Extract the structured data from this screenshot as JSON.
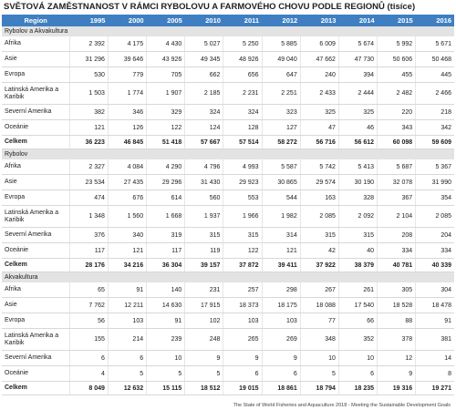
{
  "title": "SVĚTOVÁ ZAMĚSTNANOST V RÁMCI RYBOLOVU A FARMOVÉHO CHOVU PODLE REGIONŮ (tisíce)",
  "header": [
    "Region",
    "1995",
    "2000",
    "2005",
    "2010",
    "2011",
    "2012",
    "2013",
    "2014",
    "2015",
    "2016"
  ],
  "sections": [
    {
      "name": "Rybolov a Akvakultura",
      "rows": [
        {
          "label": "Afrika",
          "values": [
            "2 392",
            "4 175",
            "4 430",
            "5 027",
            "5 250",
            "5 885",
            "6 009",
            "5 674",
            "5 992",
            "5 671"
          ]
        },
        {
          "label": "Asie",
          "values": [
            "31 296",
            "39 646",
            "43 926",
            "49 345",
            "48 926",
            "49 040",
            "47 662",
            "47 730",
            "50 606",
            "50 468"
          ]
        },
        {
          "label": "Evropa",
          "values": [
            "530",
            "779",
            "705",
            "662",
            "656",
            "647",
            "240",
            "394",
            "455",
            "445"
          ]
        },
        {
          "label": "Latinská Amerika a Karibik",
          "values": [
            "1 503",
            "1 774",
            "1 907",
            "2 185",
            "2 231",
            "2 251",
            "2 433",
            "2 444",
            "2 482",
            "2 466"
          ]
        },
        {
          "label": "Severní Amerika",
          "values": [
            "382",
            "346",
            "329",
            "324",
            "324",
            "323",
            "325",
            "325",
            "220",
            "218"
          ]
        },
        {
          "label": "Oceánie",
          "values": [
            "121",
            "126",
            "122",
            "124",
            "128",
            "127",
            "47",
            "46",
            "343",
            "342"
          ]
        },
        {
          "label": "Celkem",
          "values": [
            "36 223",
            "46 845",
            "51 418",
            "57 667",
            "57 514",
            "58 272",
            "56 716",
            "56 612",
            "60 098",
            "59 609"
          ]
        }
      ]
    },
    {
      "name": "Rybolov",
      "rows": [
        {
          "label": "Afrika",
          "values": [
            "2 327",
            "4 084",
            "4 290",
            "4 796",
            "4 993",
            "5 587",
            "5 742",
            "5 413",
            "5 687",
            "5 367"
          ]
        },
        {
          "label": "Asie",
          "values": [
            "23 534",
            "27 435",
            "29 296",
            "31 430",
            "29 923",
            "30 865",
            "29 574",
            "30 190",
            "32 078",
            "31 990"
          ]
        },
        {
          "label": "Evropa",
          "values": [
            "474",
            "676",
            "614",
            "560",
            "553",
            "544",
            "163",
            "328",
            "367",
            "354"
          ]
        },
        {
          "label": "Latinská Amerika a Karibik",
          "values": [
            "1 348",
            "1 560",
            "1 668",
            "1 937",
            "1 966",
            "1 982",
            "2 085",
            "2 092",
            "2 104",
            "2 085"
          ]
        },
        {
          "label": "Severní Amerika",
          "values": [
            "376",
            "340",
            "319",
            "315",
            "315",
            "314",
            "315",
            "315",
            "208",
            "204"
          ]
        },
        {
          "label": "Oceánie",
          "values": [
            "117",
            "121",
            "117",
            "119",
            "122",
            "121",
            "42",
            "40",
            "334",
            "334"
          ]
        },
        {
          "label": "Celkem",
          "values": [
            "28 176",
            "34 216",
            "36 304",
            "39 157",
            "37 872",
            "39 411",
            "37 922",
            "38 379",
            "40 781",
            "40 339"
          ]
        }
      ]
    },
    {
      "name": "Akvakultura",
      "rows": [
        {
          "label": "Afrika",
          "values": [
            "65",
            "91",
            "140",
            "231",
            "257",
            "298",
            "267",
            "261",
            "305",
            "304"
          ]
        },
        {
          "label": "Asie",
          "values": [
            "7 762",
            "12 211",
            "14 630",
            "17 915",
            "18 373",
            "18 175",
            "18 088",
            "17 540",
            "18 528",
            "18 478"
          ]
        },
        {
          "label": "Evropa",
          "values": [
            "56",
            "103",
            "91",
            "102",
            "103",
            "103",
            "77",
            "66",
            "88",
            "91"
          ]
        },
        {
          "label": "Latinská Amerika a Karibik",
          "values": [
            "155",
            "214",
            "239",
            "248",
            "265",
            "269",
            "348",
            "352",
            "378",
            "381"
          ]
        },
        {
          "label": "Severní Amerika",
          "values": [
            "6",
            "6",
            "10",
            "9",
            "9",
            "9",
            "10",
            "10",
            "12",
            "14"
          ]
        },
        {
          "label": "Oceánie",
          "values": [
            "4",
            "5",
            "5",
            "5",
            "6",
            "6",
            "5",
            "6",
            "9",
            "8"
          ]
        },
        {
          "label": "Celkem",
          "values": [
            "8 049",
            "12 632",
            "15 115",
            "18 512",
            "19 015",
            "18 861",
            "18 794",
            "18 235",
            "19 316",
            "19 271"
          ]
        }
      ]
    }
  ],
  "footer": "The State of World Fisheries and Aquaculture 2018 - Meeting the Sustainable Development Goals"
}
